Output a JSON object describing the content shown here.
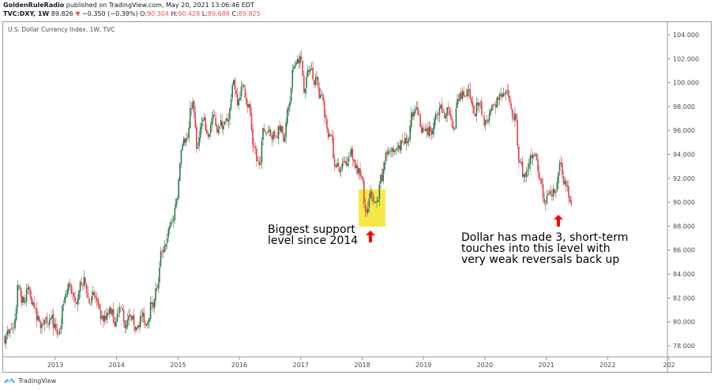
{
  "header": {
    "publisher": "GoldenRuleRadio",
    "published_text": "published on TradingView.com, May 20, 2021 13:06:46 EDT",
    "symbol": "TVC:DXY, 1W",
    "last": "89.826",
    "change": "−0.350 (−0.39%)",
    "o_label": "O:",
    "o": "90.304",
    "h_label": "H:",
    "h": "90.428",
    "l_label": "L:",
    "l": "89.688",
    "c_label": "C:",
    "c": "89.825"
  },
  "legend": "U.S. Dollar Currency Index, 1W, TVC",
  "footer": {
    "brand": "TradingView"
  },
  "colors": {
    "up": "#2b7a4b",
    "down": "#e0434d",
    "highlight": "#f7e84a",
    "arrow": "#ff0000"
  },
  "annotations": {
    "support_text": [
      "Biggest support",
      "level since 2014"
    ],
    "touches_text": [
      "Dollar has made 3, short-term",
      "touches into this level with",
      "very weak reversals back up"
    ]
  },
  "chart_data": {
    "type": "candlestick",
    "title": "U.S. Dollar Currency Index, 1W, TVC",
    "x_ticks": [
      "2013",
      "2014",
      "2015",
      "2016",
      "2017",
      "2018",
      "2019",
      "2020",
      "2021",
      "2022",
      "202"
    ],
    "y_ticks": [
      "78.000",
      "80.000",
      "82.000",
      "84.000",
      "86.000",
      "88.000",
      "90.000",
      "92.000",
      "94.000",
      "96.000",
      "98.000",
      "100.000",
      "102.000",
      "104.000"
    ],
    "ylim": [
      77,
      104.5
    ],
    "start": "2012-03",
    "monthly_close": [
      79.0,
      79.5,
      83.0,
      81.6,
      82.7,
      81.2,
      80.0,
      80.2,
      80.2,
      79.8,
      79.2,
      82.1,
      83.0,
      81.7,
      83.3,
      83.2,
      81.5,
      82.0,
      80.2,
      80.2,
      80.7,
      80.0,
      81.2,
      79.7,
      80.1,
      79.5,
      80.4,
      79.8,
      81.5,
      82.7,
      85.9,
      87.0,
      88.4,
      90.3,
      94.8,
      95.3,
      98.4,
      94.6,
      96.9,
      95.5,
      97.3,
      96.1,
      96.4,
      96.9,
      100.2,
      98.6,
      99.6,
      98.2,
      94.6,
      93.1,
      95.9,
      96.1,
      95.5,
      96.0,
      95.4,
      98.4,
      101.5,
      102.2,
      99.5,
      101.1,
      100.4,
      99.0,
      97.0,
      95.6,
      92.9,
      92.7,
      93.1,
      94.5,
      93.1,
      92.1,
      89.1,
      90.6,
      90.1,
      91.8,
      94.0,
      94.5,
      94.5,
      95.1,
      95.1,
      97.1,
      97.3,
      96.2,
      95.6,
      96.2,
      97.3,
      97.5,
      97.8,
      96.1,
      98.5,
      98.9,
      99.4,
      97.4,
      98.3,
      96.4,
      97.4,
      98.1,
      99.0,
      99.0,
      98.3,
      97.4,
      93.3,
      92.1,
      93.9,
      94.0,
      91.9,
      89.9,
      90.6,
      90.9,
      93.2,
      91.3,
      89.8
    ],
    "grid": false
  }
}
